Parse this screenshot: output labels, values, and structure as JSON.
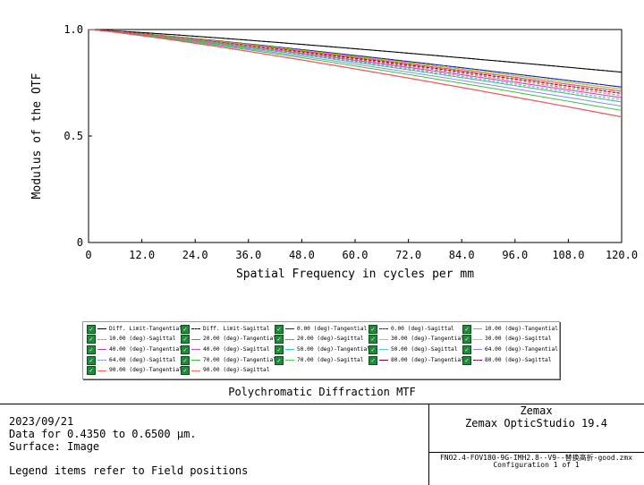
{
  "chart_data": {
    "type": "line",
    "title": "Polychromatic Diffraction MTF",
    "xlabel": "Spatial Frequency in cycles per mm",
    "ylabel": "Modulus of the OTF",
    "xlim": [
      0,
      120
    ],
    "ylim": [
      0,
      1
    ],
    "x_ticks": [
      "0",
      "12.0",
      "24.0",
      "36.0",
      "48.0",
      "60.0",
      "72.0",
      "84.0",
      "96.0",
      "108.0",
      "120.0"
    ],
    "y_ticks": [
      {
        "value": 0,
        "label": "0"
      },
      {
        "value": 0.5,
        "label": "0.5"
      },
      {
        "value": 1,
        "label": "1.0"
      }
    ],
    "grid": false,
    "legend_position": "bottom",
    "series": [
      {
        "name": "Diff. Limit-Tangential",
        "color": "#000000",
        "dash": false,
        "end": 0.8
      },
      {
        "name": "Diff. Limit-Sagittal",
        "color": "#000000",
        "dash": true,
        "end": 0.8
      },
      {
        "name": "0.00 (deg)-Tangential",
        "color": "#1a1aaa",
        "dash": false,
        "end": 0.73
      },
      {
        "name": "0.00 (deg)-Sagittal",
        "color": "#1a1aaa",
        "dash": true,
        "end": 0.73
      },
      {
        "name": "10.00 (deg)-Tangential",
        "color": "#4fd04f",
        "dash": false,
        "end": 0.72
      },
      {
        "name": "10.00 (deg)-Sagittal",
        "color": "#4fd04f",
        "dash": true,
        "end": 0.72
      },
      {
        "name": "20.00 (deg)-Tangential",
        "color": "#ff3d7a",
        "dash": false,
        "end": 0.71
      },
      {
        "name": "20.00 (deg)-Sagittal",
        "color": "#ff3d7a",
        "dash": true,
        "end": 0.71
      },
      {
        "name": "30.00 (deg)-Tangential",
        "color": "#c9c900",
        "dash": false,
        "end": 0.7
      },
      {
        "name": "30.00 (deg)-Sagittal",
        "color": "#c9c900",
        "dash": true,
        "end": 0.72
      },
      {
        "name": "40.00 (deg)-Tangential",
        "color": "#c040c0",
        "dash": false,
        "end": 0.68
      },
      {
        "name": "40.00 (deg)-Sagittal",
        "color": "#c040c0",
        "dash": true,
        "end": 0.7
      },
      {
        "name": "50.00 (deg)-Tangential",
        "color": "#30c8c8",
        "dash": false,
        "end": 0.66
      },
      {
        "name": "50.00 (deg)-Sagittal",
        "color": "#30c8c8",
        "dash": true,
        "end": 0.69
      },
      {
        "name": "64.00 (deg)-Tangential",
        "color": "#8a8ae8",
        "dash": false,
        "end": 0.64
      },
      {
        "name": "64.00 (deg)-Sagittal",
        "color": "#8a8ae8",
        "dash": true,
        "end": 0.67
      },
      {
        "name": "70.00 (deg)-Tangential",
        "color": "#40c040",
        "dash": false,
        "end": 0.62
      },
      {
        "name": "70.00 (deg)-Sagittal",
        "color": "#40c040",
        "dash": true,
        "end": 0.66
      },
      {
        "name": "80.00 (deg)-Tangential",
        "color": "#800040",
        "dash": false,
        "end": 0.59
      },
      {
        "name": "80.00 (deg)-Sagittal",
        "color": "#800040",
        "dash": true,
        "end": 0.7
      },
      {
        "name": "90.00 (deg)-Tangential",
        "color": "#ff5a5a",
        "dash": false,
        "end": 0.59
      },
      {
        "name": "90.00 (deg)-Sagittal",
        "color": "#ff5a5a",
        "dash": true,
        "end": 0.69
      }
    ]
  },
  "footer": {
    "date": "2023/09/21",
    "data_range": "Data for 0.4350 to 0.6500 µm.",
    "surface": "Surface: Image",
    "legend_note": "Legend items refer to Field positions",
    "company": "Zemax",
    "product": "Zemax OpticStudio 19.4",
    "file_name": "FNO2.4-FOV180-9G-IMH2.8--V9--替换高折-good.zmx",
    "configuration": "Configuration 1 of 1"
  }
}
